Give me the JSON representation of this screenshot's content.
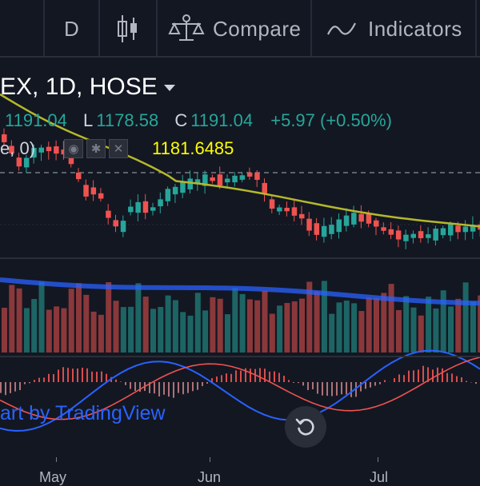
{
  "toolbar": {
    "interval": "D",
    "compare_label": "Compare",
    "indicators_label": "Indicators"
  },
  "legend": {
    "symbol": "EX, 1D, HOSE",
    "ohlc": [
      {
        "key": "",
        "value": "1191.04"
      },
      {
        "key": "L",
        "value": "1178.58"
      },
      {
        "key": "C",
        "value": "1191.04"
      }
    ],
    "change": "+5.97 (+0.50%)",
    "indicator": {
      "label": "e, 0)",
      "value": "1181.6485",
      "value_color": "#ffff00"
    }
  },
  "watermark": "art by TradingView",
  "time_axis": {
    "labels": [
      "May",
      "Jun",
      "Jul"
    ]
  },
  "colors": {
    "background": "#131722",
    "up": "#26a69a",
    "down": "#ef5350",
    "ma": "#b5b82a",
    "volume_ma": "#2962ff",
    "macd": "#2962ff",
    "signal": "#ef5350",
    "watermark": "#2962ff"
  },
  "icons": {
    "candles": "candlestick-icon",
    "compare": "scales-icon",
    "indicators": "wave-icon",
    "reset": "rotate-ccw-icon"
  }
}
